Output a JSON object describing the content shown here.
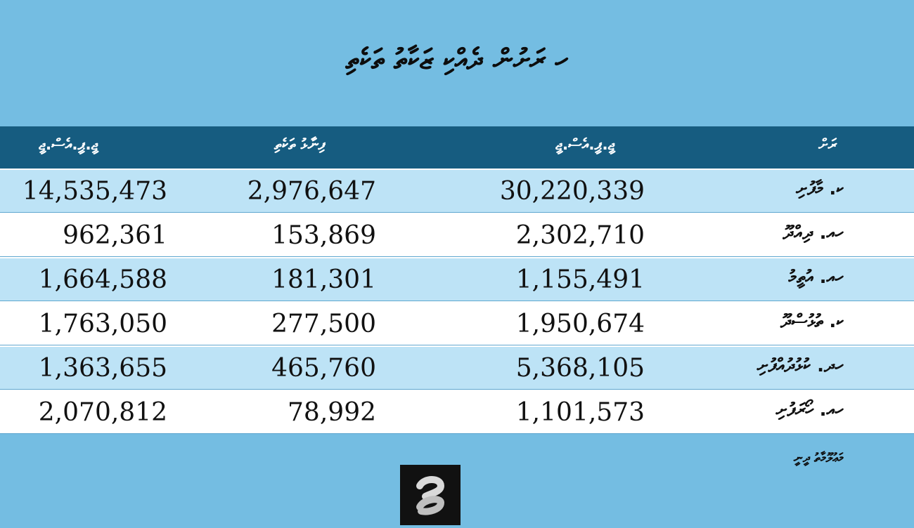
{
  "title": "ހ ރަށުން ދެއްކި ޒަކާތު ތަކެތި",
  "table": {
    "headers": [
      "ޖީ.ޕީ.އެސް.ޖީ",
      "ފިނާޅު ތަކެތި",
      "ޖީ.ޕީ.އެސް.ޖީ",
      "ރަށް"
    ],
    "rows": [
      {
        "name": "ކ. މާފުށި",
        "c1": "14,535,473",
        "c2": "2,976,647",
        "c3": "30,220,339"
      },
      {
        "name": "ހއ. ދިއްދޫ",
        "c1": "962,361",
        "c2": "153,869",
        "c3": "2,302,710"
      },
      {
        "name": "ހއ. އުތީމު",
        "c1": "1,664,588",
        "c2": "181,301",
        "c3": "1,155,491"
      },
      {
        "name": "ކ. ތުޅުސްދޫ",
        "c1": "1,763,050",
        "c2": "277,500",
        "c3": "1,950,674"
      },
      {
        "name": "ހދ. ކުޅުދުއްފުށި",
        "c1": "1,363,655",
        "c2": "465,760",
        "c3": "5,368,105"
      },
      {
        "name": "ހއ. ހޯރަފުށި",
        "c1": "2,070,812",
        "c2": "78,992",
        "c3": "1,101,573"
      }
    ]
  },
  "source": "މަޢުލޫމާތު ދީނީ",
  "logo_icon": "brand-logo-icon"
}
